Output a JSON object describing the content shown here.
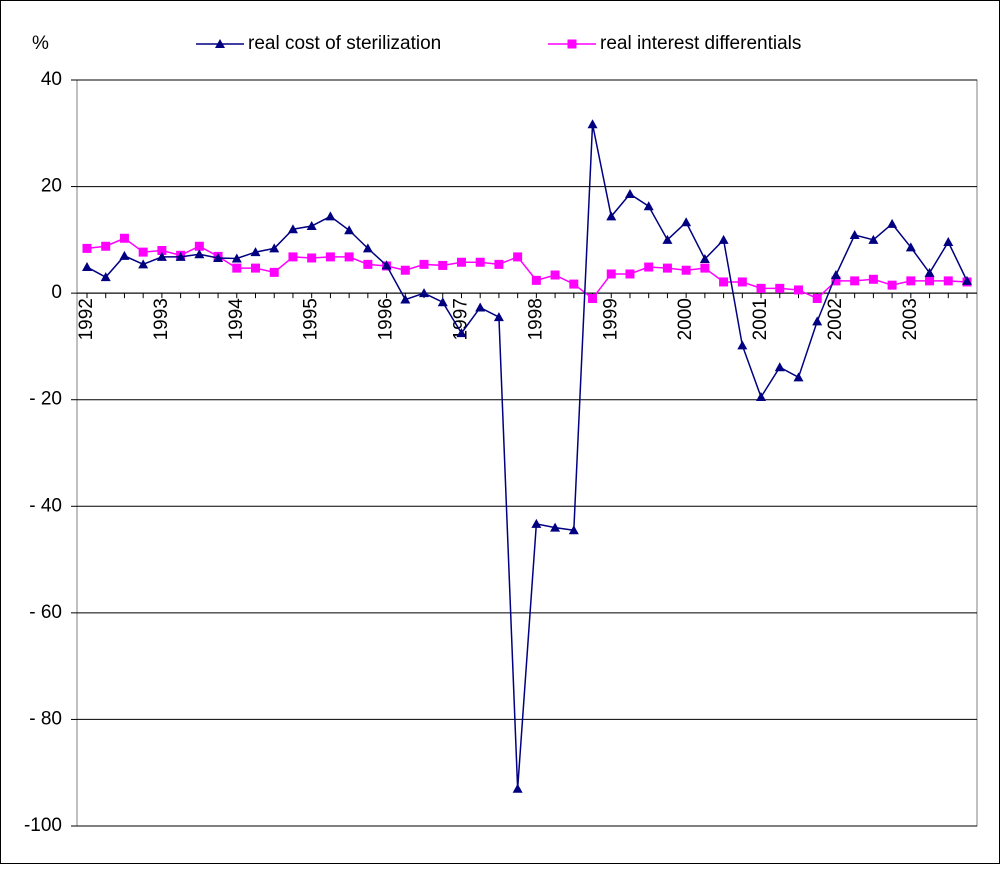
{
  "chart_data": {
    "type": "line",
    "y_label": "%",
    "categories": [
      "1992",
      null,
      null,
      null,
      "1993",
      null,
      null,
      null,
      "1994",
      null,
      null,
      null,
      "1995",
      null,
      null,
      null,
      "1996",
      null,
      null,
      null,
      "1997",
      null,
      null,
      null,
      "1998",
      null,
      null,
      null,
      "1999",
      null,
      null,
      null,
      "2000",
      null,
      null,
      null,
      "2001",
      null,
      null,
      null,
      "2002",
      null,
      null,
      null,
      "2003",
      null,
      null,
      null
    ],
    "series": [
      {
        "name": "real cost of sterilization",
        "color": "#000080",
        "marker": "triangle",
        "values": [
          4.9,
          3,
          7,
          5.4,
          6.8,
          6.8,
          7.3,
          6.6,
          6.5,
          7.7,
          8.4,
          12,
          12.6,
          14.4,
          11.8,
          8.4,
          5.2,
          -1.2,
          0,
          -1.7,
          -7.5,
          -2.7,
          -4.5,
          -93,
          -43.3,
          -44,
          -44.5,
          31.7,
          14.4,
          18.6,
          16.3,
          10,
          13.3,
          6.4,
          10,
          -9.8,
          -19.5,
          -13.9,
          -15.8,
          -5.3,
          3.4,
          10.9,
          10,
          13,
          8.6,
          3.8,
          9.6,
          2.3
        ]
      },
      {
        "name": "real interest differentials",
        "color": "#ff00ff",
        "marker": "square",
        "values": [
          8.4,
          8.8,
          10.3,
          7.7,
          8,
          7.1,
          8.8,
          6.9,
          4.7,
          4.7,
          3.9,
          6.8,
          6.6,
          6.8,
          6.8,
          5.4,
          5.1,
          4.3,
          5.4,
          5.2,
          5.8,
          5.8,
          5.4,
          6.8,
          2.4,
          3.4,
          1.7,
          -1,
          3.6,
          3.6,
          4.9,
          4.7,
          4.3,
          4.7,
          2.1,
          2.1,
          0.9,
          0.9,
          0.6,
          -1,
          2.3,
          2.3,
          2.6,
          1.5,
          2.3,
          2.3,
          2.3,
          2.1
        ]
      }
    ],
    "ylim": [
      -100,
      40
    ],
    "yticks": [
      {
        "value": -100,
        "label": "-100"
      },
      {
        "value": -80,
        "label": "- 80"
      },
      {
        "value": -60,
        "label": "- 60"
      },
      {
        "value": -40,
        "label": "- 40"
      },
      {
        "value": -20,
        "label": "- 20"
      },
      0,
      20,
      40
    ],
    "grid": true,
    "legend": "top"
  }
}
